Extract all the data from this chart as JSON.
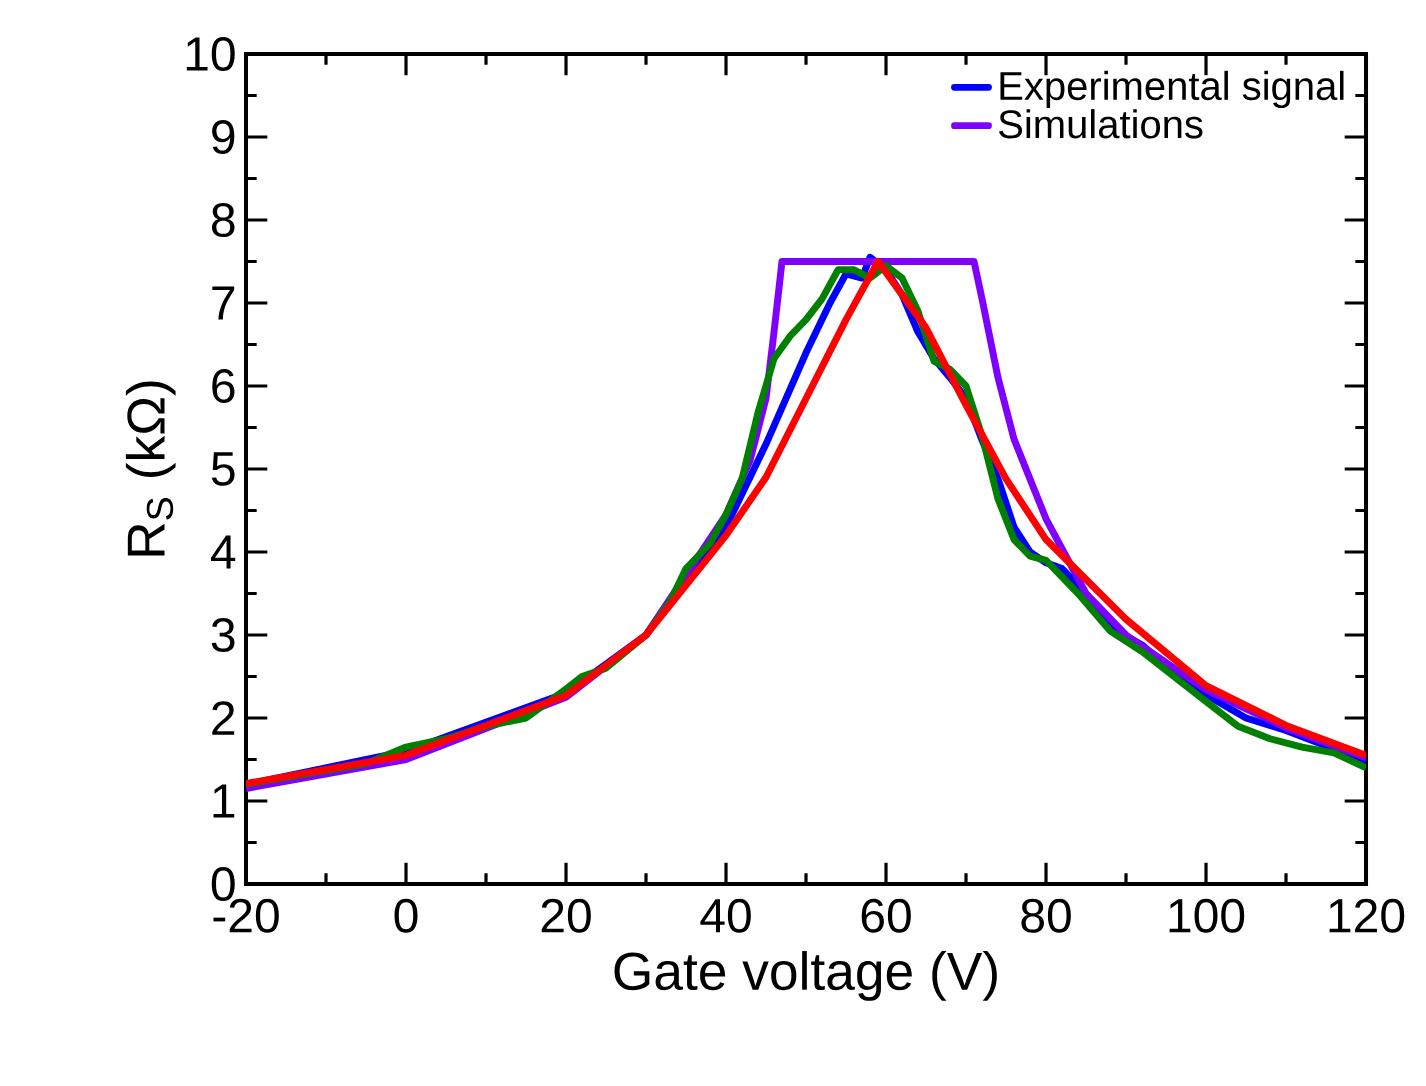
{
  "chart_data": {
    "type": "line",
    "xlabel": "Gate voltage (V)",
    "ylabel": "R$_{S}$ (kΩ)",
    "xlim": [
      -20,
      120
    ],
    "ylim": [
      0,
      10
    ],
    "xticks": [
      -20,
      0,
      20,
      40,
      60,
      80,
      100,
      120
    ],
    "yticks": [
      0,
      1,
      2,
      3,
      4,
      5,
      6,
      7,
      8,
      9,
      10
    ],
    "grid": false,
    "legend": "top right",
    "marker": "none",
    "line_style": "solid",
    "series": [
      {
        "name": "Experimental signal",
        "color": "#0000ff",
        "x": [
          -20,
          0,
          20,
          30,
          35,
          40,
          45,
          50,
          53,
          55,
          57,
          58,
          60,
          62,
          64,
          66,
          68,
          70,
          72,
          74,
          76,
          78,
          80,
          82,
          84,
          88,
          92,
          96,
          100,
          105,
          110,
          120
        ],
        "values": [
          1.2,
          1.6,
          2.3,
          3.0,
          3.7,
          4.3,
          5.3,
          6.4,
          7.0,
          7.35,
          7.3,
          7.55,
          7.4,
          7.1,
          6.65,
          6.33,
          6.1,
          5.85,
          5.35,
          4.88,
          4.3,
          4.0,
          3.87,
          3.8,
          3.6,
          3.1,
          2.88,
          2.54,
          2.28,
          2.0,
          1.85,
          1.48
        ]
      },
      {
        "name": "Simulations",
        "color": "#8000ff",
        "x": [
          -20,
          0,
          20,
          30,
          40,
          43,
          45,
          46,
          47,
          71,
          72,
          74,
          76,
          80,
          85,
          90,
          100,
          110,
          120
        ],
        "values": [
          1.15,
          1.5,
          2.25,
          3.0,
          4.45,
          5.1,
          5.85,
          6.65,
          7.5,
          7.5,
          7.05,
          6.1,
          5.36,
          4.4,
          3.5,
          3.0,
          2.34,
          1.88,
          1.52
        ]
      },
      {
        "color": "#008000",
        "x": [
          -20,
          -5,
          0,
          5,
          10,
          15,
          20,
          22,
          25,
          30,
          33,
          35,
          38,
          40,
          42,
          44,
          46,
          48,
          50,
          52,
          54,
          56,
          58,
          60,
          62,
          64,
          66,
          68,
          70,
          72,
          74,
          76,
          78,
          80,
          84,
          88,
          92,
          96,
          100,
          104,
          108,
          112,
          116,
          120
        ],
        "values": [
          1.2,
          1.45,
          1.65,
          1.75,
          1.9,
          2.0,
          2.35,
          2.5,
          2.6,
          3.0,
          3.4,
          3.8,
          4.1,
          4.45,
          4.88,
          5.68,
          6.33,
          6.6,
          6.8,
          7.05,
          7.4,
          7.4,
          7.3,
          7.45,
          7.3,
          6.9,
          6.3,
          6.2,
          6.0,
          5.4,
          4.64,
          4.15,
          3.95,
          3.9,
          3.5,
          3.05,
          2.8,
          2.5,
          2.2,
          1.9,
          1.75,
          1.65,
          1.58,
          1.4
        ]
      },
      {
        "color": "#ff0000",
        "x": [
          -20,
          0,
          20,
          30,
          40,
          45,
          50,
          55,
          59,
          65,
          70,
          75,
          80,
          90,
          100,
          110,
          120
        ],
        "values": [
          1.21,
          1.55,
          2.27,
          3.0,
          4.2,
          4.9,
          5.85,
          6.8,
          7.5,
          6.7,
          5.77,
          4.88,
          4.15,
          3.19,
          2.39,
          1.91,
          1.55
        ]
      }
    ]
  }
}
